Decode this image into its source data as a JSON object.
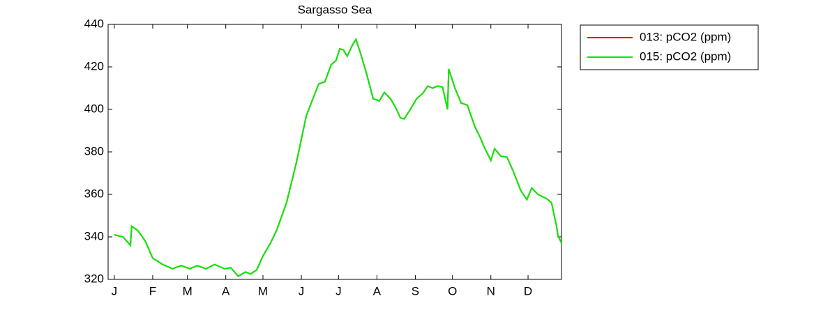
{
  "chart_data": {
    "type": "line",
    "title": "Sargasso Sea",
    "x": [
      1,
      8,
      14,
      15,
      20,
      26,
      32,
      40,
      48,
      55,
      62,
      68,
      75,
      82,
      90,
      95,
      101,
      107,
      111,
      116,
      121,
      127,
      132,
      140,
      148,
      156,
      162,
      166,
      171,
      176,
      180,
      183,
      186,
      189,
      193,
      196,
      200,
      205,
      210,
      215,
      219,
      224,
      228,
      232,
      235,
      240,
      245,
      250,
      254,
      258,
      262,
      266,
      270,
      271,
      276,
      281,
      286,
      292,
      297,
      299,
      305,
      308,
      313,
      318,
      323,
      329,
      334,
      338,
      343,
      350,
      354,
      358,
      359,
      362
    ],
    "series": [
      {
        "name": "013: pCO2 (ppm)",
        "color": "#e00000",
        "values": [
          341,
          340,
          336,
          345,
          343,
          338,
          330,
          327,
          325,
          326.5,
          325,
          326.5,
          325,
          327,
          325,
          325.5,
          321.5,
          323.5,
          322.5,
          324.5,
          331,
          337,
          343,
          356,
          375,
          397,
          406,
          412,
          413,
          421,
          423,
          428.5,
          428,
          425,
          430,
          433,
          426,
          416,
          405,
          404,
          408,
          405,
          401,
          396,
          395.5,
          400,
          405,
          407.5,
          411,
          410,
          411,
          410.5,
          400,
          419,
          410,
          403,
          402,
          392,
          386,
          383,
          376,
          381.5,
          378,
          377.5,
          371,
          362,
          357.5,
          363,
          360,
          358,
          356,
          345,
          341,
          337
        ]
      },
      {
        "name": "015: pCO2 (ppm)",
        "color": "#00ee00",
        "values": [
          341,
          340,
          336,
          345,
          343,
          338,
          330,
          327,
          325,
          326.5,
          325,
          326.5,
          325,
          327,
          325,
          325.5,
          321.5,
          323.5,
          322.5,
          324.5,
          331,
          337,
          343,
          356,
          375,
          397,
          406,
          412,
          413,
          421,
          423,
          428.5,
          428,
          425,
          430,
          433,
          426,
          416,
          405,
          404,
          408,
          405,
          401,
          396,
          395.5,
          400,
          405,
          407.5,
          411,
          410,
          411,
          410.5,
          400,
          419,
          410,
          403,
          402,
          392,
          386,
          383,
          376,
          381.5,
          378,
          377.5,
          371,
          362,
          357.5,
          363,
          360,
          358,
          356,
          345,
          341,
          337
        ]
      }
    ],
    "xlim": [
      -4,
      362
    ],
    "xticks": [
      {
        "value": 1,
        "label": "J"
      },
      {
        "value": 32,
        "label": "F"
      },
      {
        "value": 60,
        "label": "M"
      },
      {
        "value": 91,
        "label": "A"
      },
      {
        "value": 121,
        "label": "M"
      },
      {
        "value": 152,
        "label": "J"
      },
      {
        "value": 182,
        "label": "J"
      },
      {
        "value": 213,
        "label": "A"
      },
      {
        "value": 244,
        "label": "S"
      },
      {
        "value": 274,
        "label": "O"
      },
      {
        "value": 305,
        "label": "N"
      },
      {
        "value": 335,
        "label": "D"
      }
    ],
    "ylim": [
      320,
      440
    ],
    "yticks": [
      320,
      340,
      360,
      380,
      400,
      420,
      440
    ],
    "grid": false,
    "legend": "outside-right"
  }
}
